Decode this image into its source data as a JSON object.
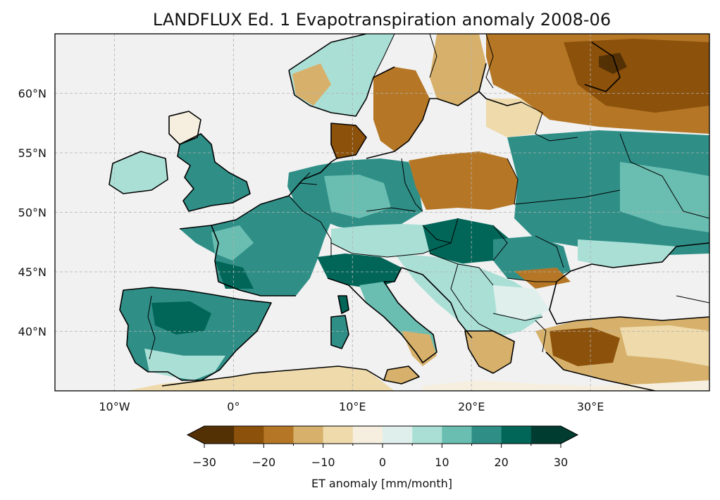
{
  "title": "LANDFLUX Ed. 1 Evapotranspiration anomaly 2008-06",
  "map": {
    "lon_range": [
      -15,
      40
    ],
    "lat_range": [
      35,
      65
    ],
    "x_ticks": [
      {
        "lon": -10,
        "label": "10°W"
      },
      {
        "lon": 0,
        "label": "0°"
      },
      {
        "lon": 10,
        "label": "10°E"
      },
      {
        "lon": 20,
        "label": "20°E"
      },
      {
        "lon": 30,
        "label": "30°E"
      }
    ],
    "y_ticks": [
      {
        "lat": 40,
        "label": "40°N"
      },
      {
        "lat": 45,
        "label": "45°N"
      },
      {
        "lat": 50,
        "label": "50°N"
      },
      {
        "lat": 55,
        "label": "55°N"
      },
      {
        "lat": 60,
        "label": "60°N"
      }
    ],
    "ocean_color": "#f1f1f1",
    "grid": true
  },
  "colorbar": {
    "label": "ET anomaly [mm/month]",
    "ticks": [
      {
        "value": -30,
        "label": "−30"
      },
      {
        "value": -20,
        "label": "−20"
      },
      {
        "value": -10,
        "label": "−10"
      },
      {
        "value": 0,
        "label": "0"
      },
      {
        "value": 10,
        "label": "10"
      },
      {
        "value": 20,
        "label": "20"
      },
      {
        "value": 30,
        "label": "30"
      }
    ],
    "range": [
      -30,
      30
    ],
    "extend": "both",
    "under_color": "#543005",
    "over_color": "#003c30",
    "bins": [
      {
        "from": -30,
        "to": -25,
        "color": "#543005"
      },
      {
        "from": -25,
        "to": -20,
        "color": "#8c510a"
      },
      {
        "from": -20,
        "to": -15,
        "color": "#b57726"
      },
      {
        "from": -15,
        "to": -10,
        "color": "#d7b16b"
      },
      {
        "from": -10,
        "to": -5,
        "color": "#eedaab"
      },
      {
        "from": -5,
        "to": 0,
        "color": "#f6efdf"
      },
      {
        "from": 0,
        "to": 5,
        "color": "#dfefec"
      },
      {
        "from": 5,
        "to": 10,
        "color": "#aadfd6"
      },
      {
        "from": 10,
        "to": 15,
        "color": "#6abeb1"
      },
      {
        "from": 15,
        "to": 20,
        "color": "#2f8f87"
      },
      {
        "from": 20,
        "to": 25,
        "color": "#016658"
      },
      {
        "from": 25,
        "to": 30,
        "color": "#003c30"
      }
    ]
  }
}
